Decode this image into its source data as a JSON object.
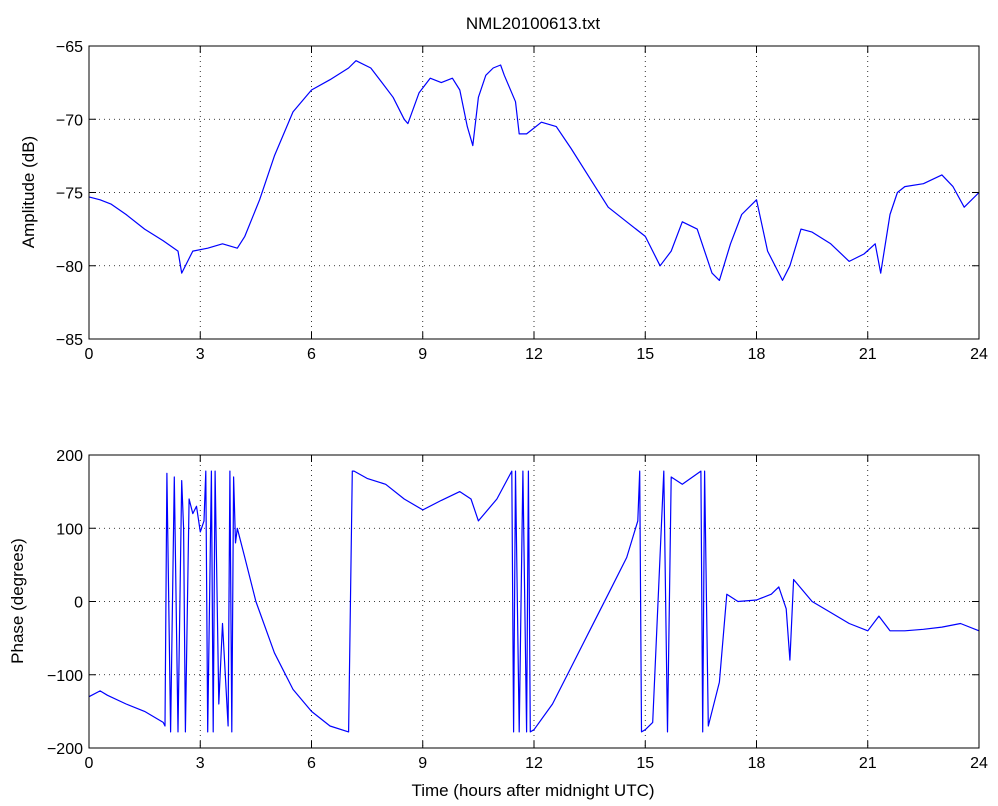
{
  "figure": {
    "title": "NML20100613.txt",
    "xlabel": "Time (hours after midnight UTC)"
  },
  "colors": {
    "series": "#0000ff",
    "grid": "#000000",
    "axes": "#000000",
    "background": "#ffffff"
  },
  "chart_data": [
    {
      "type": "line",
      "title": "NML20100613.txt",
      "xlabel": "",
      "ylabel": "Amplitude (dB)",
      "xlim": [
        0,
        24
      ],
      "ylim": [
        -85,
        -65
      ],
      "xticks": [
        0,
        3,
        6,
        9,
        12,
        15,
        18,
        21,
        24
      ],
      "xtick_labels": [
        "0",
        "3",
        "6",
        "9",
        "12",
        "15",
        "18",
        "21",
        "24"
      ],
      "yticks": [
        -85,
        -80,
        -75,
        -70,
        -65
      ],
      "ytick_labels": [
        "−85",
        "−80",
        "−75",
        "−70",
        "−65"
      ],
      "grid": true,
      "series": [
        {
          "color": "#0000ff",
          "x": [
            0,
            0.3,
            0.6,
            1.0,
            1.5,
            2.0,
            2.4,
            2.5,
            2.8,
            3.2,
            3.6,
            4.0,
            4.2,
            4.6,
            5.0,
            5.5,
            6.0,
            6.5,
            7.0,
            7.2,
            7.6,
            7.9,
            8.2,
            8.5,
            8.6,
            8.9,
            9.2,
            9.5,
            9.8,
            10.0,
            10.2,
            10.35,
            10.5,
            10.7,
            10.9,
            11.1,
            11.2,
            11.5,
            11.6,
            11.8,
            12.2,
            12.6,
            13.0,
            13.5,
            14.0,
            14.5,
            15.0,
            15.4,
            15.7,
            16.0,
            16.4,
            16.8,
            17.0,
            17.3,
            17.6,
            18.0,
            18.3,
            18.7,
            18.9,
            19.2,
            19.5,
            20.0,
            20.5,
            20.9,
            21.2,
            21.35,
            21.6,
            21.8,
            22.0,
            22.5,
            23.0,
            23.3,
            23.6,
            24.0
          ],
          "y": [
            -75.3,
            -75.5,
            -75.8,
            -76.5,
            -77.5,
            -78.3,
            -79.0,
            -80.5,
            -79.0,
            -78.8,
            -78.5,
            -78.8,
            -78.0,
            -75.5,
            -72.5,
            -69.5,
            -68.0,
            -67.3,
            -66.5,
            -66.0,
            -66.5,
            -67.5,
            -68.5,
            -70.0,
            -70.3,
            -68.2,
            -67.2,
            -67.5,
            -67.2,
            -68.0,
            -70.5,
            -71.8,
            -68.5,
            -67.0,
            -66.5,
            -66.3,
            -67.0,
            -68.8,
            -71.0,
            -71.0,
            -70.2,
            -70.5,
            -72.0,
            -74.0,
            -76.0,
            -77.0,
            -78.0,
            -80.0,
            -79.0,
            -77.0,
            -77.5,
            -80.5,
            -81.0,
            -78.5,
            -76.5,
            -75.5,
            -79.0,
            -81.0,
            -80.0,
            -77.5,
            -77.7,
            -78.5,
            -79.7,
            -79.2,
            -78.5,
            -80.5,
            -76.5,
            -75.0,
            -74.6,
            -74.4,
            -73.8,
            -74.6,
            -76.0,
            -75.0
          ]
        }
      ]
    },
    {
      "type": "line",
      "title": "",
      "xlabel": "Time (hours after midnight UTC)",
      "ylabel": "Phase (degrees)",
      "xlim": [
        0,
        24
      ],
      "ylim": [
        -200,
        200
      ],
      "xticks": [
        0,
        3,
        6,
        9,
        12,
        15,
        18,
        21,
        24
      ],
      "xtick_labels": [
        "0",
        "3",
        "6",
        "9",
        "12",
        "15",
        "18",
        "21",
        "24"
      ],
      "yticks": [
        -200,
        -100,
        0,
        100,
        200
      ],
      "ytick_labels": [
        "−200",
        "−100",
        "0",
        "100",
        "200"
      ],
      "grid": true,
      "series": [
        {
          "color": "#0000ff",
          "x": [
            0,
            0.3,
            0.5,
            1.0,
            1.5,
            2.0,
            2.05,
            2.1,
            2.2,
            2.3,
            2.4,
            2.5,
            2.55,
            2.6,
            2.7,
            2.8,
            2.9,
            3.0,
            3.1,
            3.15,
            3.2,
            3.3,
            3.35,
            3.4,
            3.5,
            3.6,
            3.75,
            3.8,
            3.85,
            3.9,
            3.95,
            4.0,
            4.2,
            4.5,
            5.0,
            5.5,
            6.0,
            6.5,
            7.0,
            7.1,
            7.15,
            7.5,
            8.0,
            8.5,
            9.0,
            9.5,
            10.0,
            10.3,
            10.5,
            11.0,
            11.4,
            11.45,
            11.5,
            11.6,
            11.7,
            11.8,
            11.85,
            11.9,
            12.0,
            12.5,
            13.0,
            13.5,
            14.0,
            14.5,
            14.8,
            14.85,
            14.9,
            15.0,
            15.2,
            15.5,
            15.6,
            15.7,
            16.0,
            16.5,
            16.55,
            16.6,
            16.7,
            16.8,
            17.0,
            17.2,
            17.5,
            18.0,
            18.4,
            18.6,
            18.8,
            18.9,
            19.0,
            19.5,
            20.0,
            20.5,
            21.0,
            21.3,
            21.6,
            22.0,
            22.5,
            23.0,
            23.5,
            24.0
          ],
          "y": [
            -130,
            -122,
            -128,
            -140,
            -150,
            -165,
            -170,
            175,
            -178,
            170,
            -178,
            165,
            100,
            -178,
            140,
            120,
            130,
            95,
            110,
            178,
            -178,
            178,
            -178,
            178,
            -140,
            -30,
            -170,
            178,
            -178,
            170,
            80,
            100,
            60,
            0,
            -70,
            -120,
            -150,
            -170,
            -178,
            178,
            178,
            168,
            160,
            140,
            125,
            138,
            150,
            140,
            110,
            140,
            178,
            -178,
            178,
            -178,
            178,
            -178,
            178,
            -178,
            -175,
            -140,
            -90,
            -40,
            10,
            60,
            110,
            178,
            -178,
            -175,
            -165,
            178,
            -178,
            170,
            160,
            178,
            -178,
            178,
            -170,
            -150,
            -110,
            10,
            0,
            2,
            10,
            20,
            -10,
            -80,
            30,
            0,
            -15,
            -30,
            -40,
            -20,
            -40,
            -40,
            -38,
            -35,
            -30,
            -40
          ]
        }
      ]
    }
  ]
}
